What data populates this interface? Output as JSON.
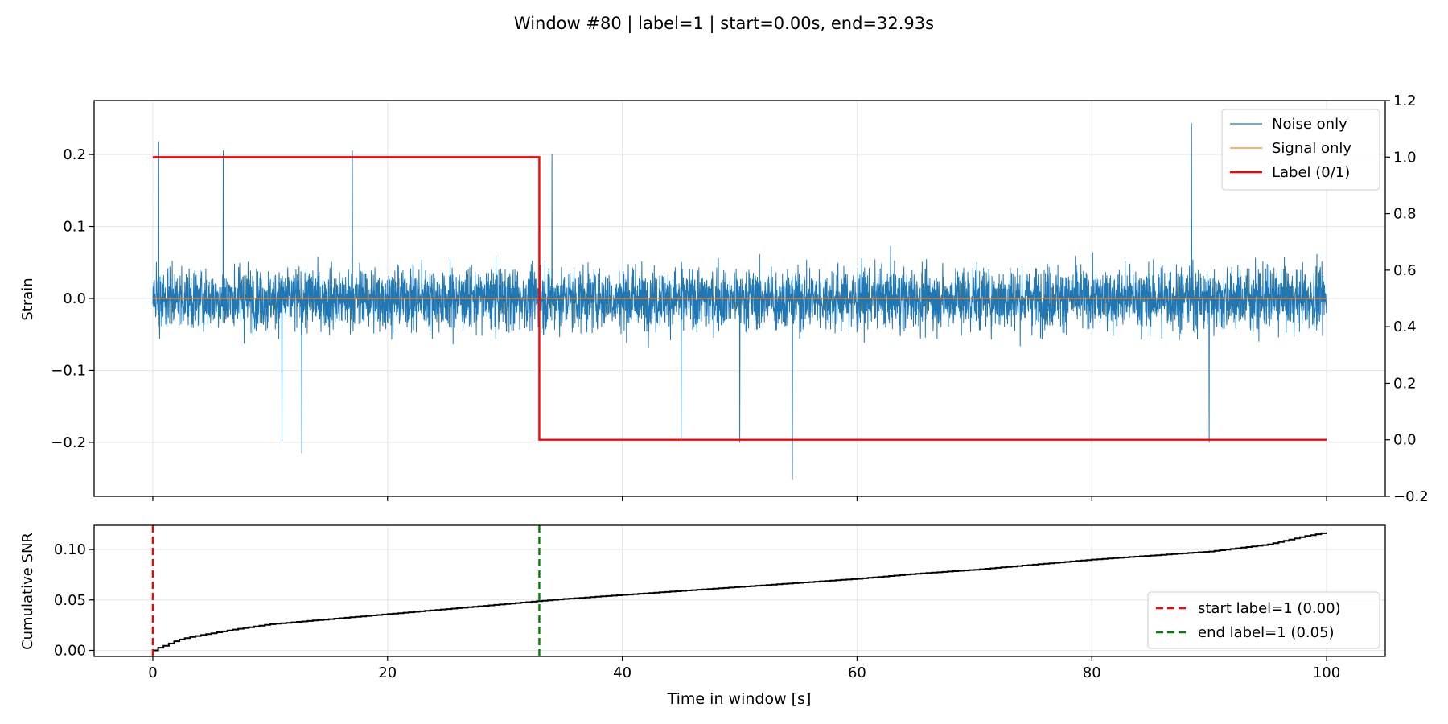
{
  "figure": {
    "title": "Window #80 | label=1 | start=0.00s, end=32.93s"
  },
  "chart_data": [
    {
      "type": "line",
      "panel": "top",
      "xlim": [
        -5,
        105
      ],
      "ylim": [
        -0.275,
        0.275
      ],
      "y2lim": [
        -0.2,
        1.2
      ],
      "xticks": [
        0,
        20,
        40,
        60,
        80,
        100
      ],
      "yticks": [
        -0.2,
        -0.1,
        0.0,
        0.1,
        0.2
      ],
      "ytick_labels": [
        "−0.2",
        "−0.1",
        "0.0",
        "0.1",
        "0.2"
      ],
      "y2ticks": [
        -0.2,
        0.0,
        0.2,
        0.4,
        0.6,
        0.8,
        1.0,
        1.2
      ],
      "y2tick_labels": [
        "−0.2",
        "0.0",
        "0.2",
        "0.4",
        "0.6",
        "0.8",
        "1.0",
        "1.2"
      ],
      "ylabel": "Strain",
      "grid": true,
      "legend_position": "top-right",
      "series": [
        {
          "name": "Noise only",
          "color": "#1f77b4",
          "kind": "noise",
          "x_range": [
            0,
            100
          ],
          "envelope": {
            "typical_max": 0.13,
            "typical_min": -0.1
          },
          "peaks": [
            {
              "x": 0.5,
              "y": 0.218
            },
            {
              "x": 6.0,
              "y": 0.205
            },
            {
              "x": 17.0,
              "y": 0.205
            },
            {
              "x": 34.0,
              "y": 0.2
            },
            {
              "x": 88.5,
              "y": 0.243
            },
            {
              "x": 54.5,
              "y": -0.252
            },
            {
              "x": 12.7,
              "y": -0.215
            },
            {
              "x": 11.0,
              "y": -0.198
            },
            {
              "x": 45.0,
              "y": -0.198
            },
            {
              "x": 50.0,
              "y": -0.2
            },
            {
              "x": 90.0,
              "y": -0.2
            }
          ]
        },
        {
          "name": "Signal only",
          "color": "#ff7f0e",
          "x": [
            0,
            100
          ],
          "y": [
            0.0,
            0.0
          ]
        },
        {
          "name": "Label (0/1)",
          "color": "#ff0000",
          "axis": "right",
          "step_x": [
            0,
            32.93,
            32.93,
            100
          ],
          "step_y": [
            1,
            1,
            0,
            0
          ]
        }
      ]
    },
    {
      "type": "line",
      "panel": "bottom",
      "xlim": [
        -5,
        105
      ],
      "ylim": [
        -0.006,
        0.124
      ],
      "xticks": [
        0,
        20,
        40,
        60,
        80,
        100
      ],
      "xtick_labels": [
        "0",
        "20",
        "40",
        "60",
        "80",
        "100"
      ],
      "yticks": [
        0.0,
        0.05,
        0.1
      ],
      "ytick_labels": [
        "0.00",
        "0.05",
        "0.10"
      ],
      "xlabel": "Time in window [s]",
      "ylabel": "Cumulative SNR",
      "grid": true,
      "legend_position": "bottom-right",
      "series": [
        {
          "name": "",
          "color": "#000000",
          "x": [
            0,
            0.5,
            1,
            2,
            3,
            5,
            7,
            10,
            15,
            20,
            25,
            30,
            32.93,
            35,
            40,
            45,
            50,
            55,
            60,
            65,
            70,
            75,
            80,
            85,
            90,
            95,
            98,
            100
          ],
          "y": [
            0.0,
            0.003,
            0.005,
            0.01,
            0.013,
            0.017,
            0.021,
            0.026,
            0.031,
            0.036,
            0.041,
            0.046,
            0.049,
            0.051,
            0.055,
            0.059,
            0.063,
            0.067,
            0.071,
            0.076,
            0.08,
            0.085,
            0.09,
            0.094,
            0.098,
            0.105,
            0.113,
            0.117
          ]
        },
        {
          "name": "start label=1 (0.00)",
          "color": "#ff0000",
          "style": "dashed",
          "vline_x": 0.0
        },
        {
          "name": "end label=1 (0.05)",
          "color": "#008000",
          "style": "dashed",
          "vline_x": 32.93
        }
      ]
    }
  ]
}
